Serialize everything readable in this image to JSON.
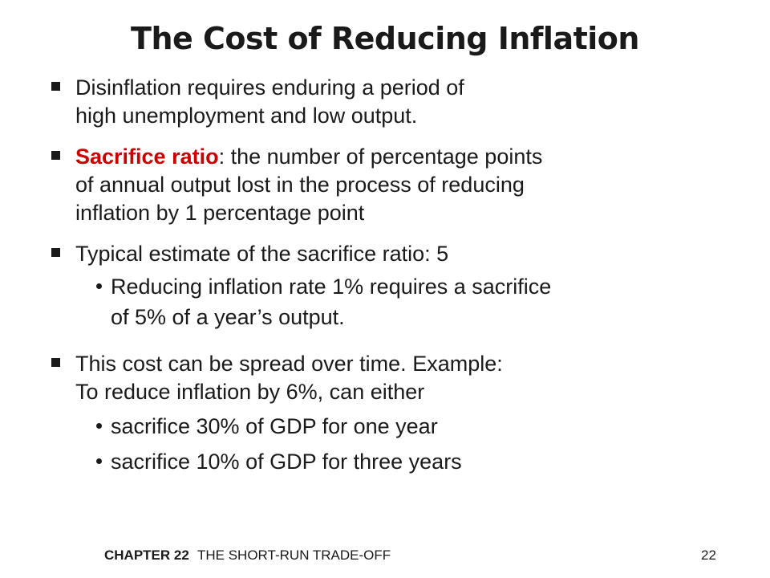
{
  "title": "The Cost of Reducing Inflation",
  "colors": {
    "bullet_marker": "#1a1a1a",
    "highlight": "#cc0000",
    "sub_dot": "#1a1a1a"
  },
  "bullets": [
    {
      "lines": [
        "Disinflation requires enduring a period of",
        "high unemployment and low output."
      ]
    },
    {
      "term": "Sacrifice ratio",
      "term_rest": ":  the number of percentage points",
      "lines": [
        "of annual output lost in the process of reducing",
        "inflation by 1 percentage point"
      ]
    },
    {
      "lines": [
        "Typical estimate of the sacrifice ratio:  5"
      ],
      "subs": [
        {
          "lines": [
            "Reducing inflation rate 1% requires a sacrifice",
            "of 5% of a year’s output."
          ]
        }
      ]
    },
    {
      "lines": [
        "This cost can be spread over time.  Example:",
        "To reduce inflation by 6%, can either"
      ],
      "subs": [
        {
          "lines": [
            "sacrifice 30% of GDP for one year"
          ]
        },
        {
          "lines": [
            "sacrifice 10% of GDP for three years"
          ]
        }
      ]
    }
  ],
  "footer": {
    "chapter": "CHAPTER 22",
    "topic": "THE SHORT-RUN TRADE-OFF",
    "page": "22"
  }
}
